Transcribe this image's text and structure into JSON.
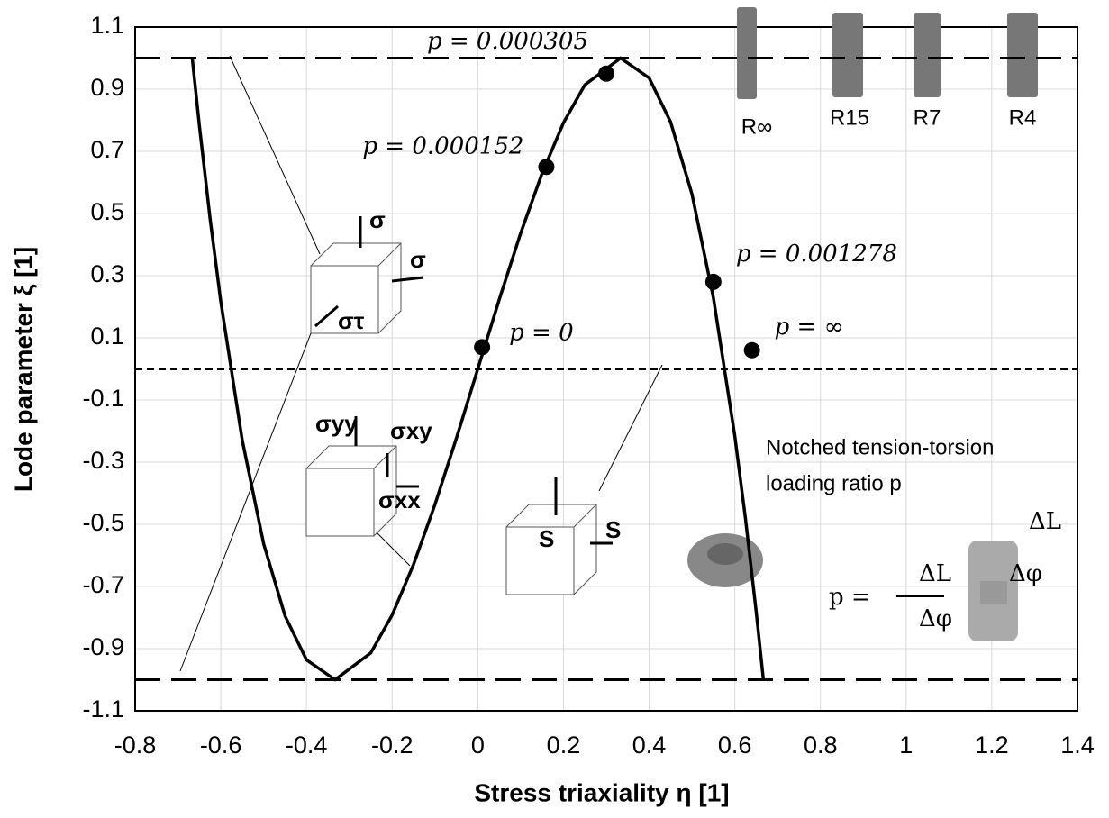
{
  "chart_data": {
    "type": "line",
    "x_label": "Stress triaxiality η [1]",
    "y_label": "Lode parameter ξ [1]",
    "xlim": [
      -0.8,
      1.4
    ],
    "ylim": [
      -1.1,
      1.1
    ],
    "xticks": [
      -0.8,
      -0.6,
      -0.4,
      -0.2,
      0,
      0.2,
      0.4,
      0.6,
      0.8,
      1,
      1.2,
      1.4
    ],
    "yticks": [
      -1.1,
      -0.9,
      -0.7,
      -0.5,
      -0.3,
      -0.1,
      0.1,
      0.3,
      0.5,
      0.7,
      0.9,
      1.1
    ],
    "grid": true,
    "hlines": [
      {
        "value": 1,
        "style": "long-dash"
      },
      {
        "value": -1,
        "style": "long-dash"
      },
      {
        "value": 0,
        "style": "short-dash"
      }
    ],
    "curve": {
      "color": "#000000",
      "x": [
        -0.6667,
        -0.65,
        -0.625,
        -0.6,
        -0.55,
        -0.5,
        -0.45,
        -0.4,
        -0.3333,
        -0.25,
        -0.2,
        -0.15,
        -0.1,
        -0.05,
        0,
        0.05,
        0.1,
        0.15,
        0.2,
        0.25,
        0.3333,
        0.4,
        0.45,
        0.5,
        0.55,
        0.6,
        0.625,
        0.65,
        0.6667
      ],
      "y": [
        1.0,
        0.782,
        0.483,
        0.216,
        -0.229,
        -0.5625,
        -0.795,
        -0.936,
        -1.0,
        -0.914,
        -0.792,
        -0.629,
        -0.4365,
        -0.223,
        0,
        0.223,
        0.4365,
        0.629,
        0.792,
        0.914,
        1.0,
        0.936,
        0.795,
        0.5625,
        0.229,
        -0.216,
        -0.483,
        -0.782,
        -1.0
      ]
    },
    "points": {
      "color": "#000000",
      "x": [
        0.01,
        0.16,
        0.3,
        0.55,
        0.64
      ],
      "y": [
        0.07,
        0.65,
        0.95,
        0.28,
        0.06
      ],
      "labels": [
        "p = 0",
        "p = 0.000152",
        "p = 0.000305",
        "p = 0.001278",
        "p = ∞"
      ]
    },
    "annotations": [
      "R∞",
      "R15",
      "R7",
      "R4",
      "Notched tension-torsion",
      "loading ratio p",
      "p =",
      "ΔL",
      "Δφ",
      "ΔL",
      "Δφ",
      "σ",
      "σ",
      "στ",
      "σyy",
      "σxy",
      "σxx",
      "S",
      "S"
    ]
  }
}
